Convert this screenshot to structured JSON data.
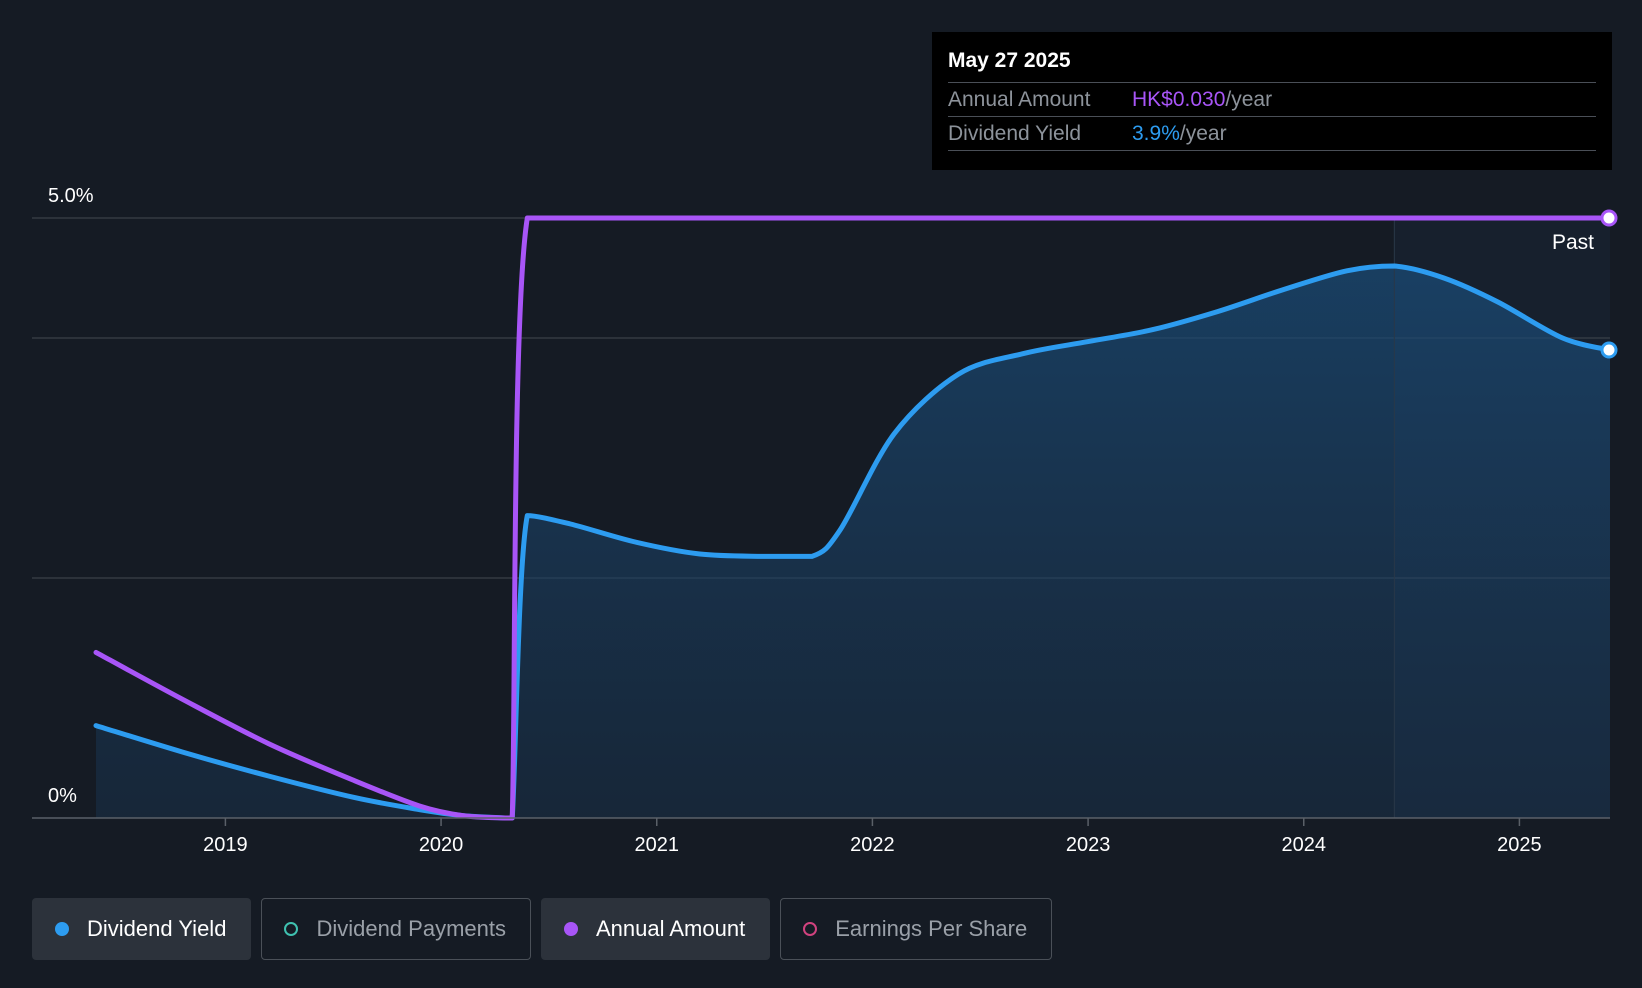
{
  "tooltip": {
    "date": "May 27 2025",
    "rows": [
      {
        "label": "Annual Amount",
        "value": "HK$0.030",
        "unit": "/year",
        "color": "#a855f7"
      },
      {
        "label": "Dividend Yield",
        "value": "3.9%",
        "unit": "/year",
        "color": "#2d9cf0"
      }
    ]
  },
  "legend": [
    {
      "label": "Dividend Yield",
      "color": "#2d9cf0",
      "active": true,
      "filled": true
    },
    {
      "label": "Dividend Payments",
      "color": "#3fc1b0",
      "active": false,
      "filled": false
    },
    {
      "label": "Annual Amount",
      "color": "#a855f7",
      "active": true,
      "filled": true
    },
    {
      "label": "Earnings Per Share",
      "color": "#d0427e",
      "active": false,
      "filled": false
    }
  ],
  "chart_data": {
    "type": "line",
    "y_ticks": [
      "5.0%",
      "0%"
    ],
    "ylim": [
      0,
      5.0
    ],
    "x_ticks": [
      "2019",
      "2020",
      "2021",
      "2022",
      "2023",
      "2024",
      "2025"
    ],
    "xlim": [
      2018.1,
      2025.42
    ],
    "past_label": "Past",
    "past_start": 2024.42,
    "series": [
      {
        "name": "Dividend Yield",
        "color": "#2d9cf0",
        "points": [
          [
            2018.4,
            0.77
          ],
          [
            2018.8,
            0.55
          ],
          [
            2019.2,
            0.35
          ],
          [
            2019.6,
            0.17
          ],
          [
            2019.9,
            0.07
          ],
          [
            2020.1,
            0.02
          ],
          [
            2020.3,
            0.0
          ],
          [
            2020.33,
            0.0
          ],
          [
            2020.4,
            2.52
          ],
          [
            2020.6,
            2.45
          ],
          [
            2020.9,
            2.3
          ],
          [
            2021.2,
            2.2
          ],
          [
            2021.5,
            2.18
          ],
          [
            2021.72,
            2.18
          ],
          [
            2021.85,
            2.4
          ],
          [
            2022.1,
            3.2
          ],
          [
            2022.4,
            3.7
          ],
          [
            2022.7,
            3.87
          ],
          [
            2023.0,
            3.97
          ],
          [
            2023.3,
            4.07
          ],
          [
            2023.6,
            4.22
          ],
          [
            2023.9,
            4.4
          ],
          [
            2024.2,
            4.56
          ],
          [
            2024.42,
            4.6
          ],
          [
            2024.65,
            4.5
          ],
          [
            2024.9,
            4.3
          ],
          [
            2025.2,
            4.0
          ],
          [
            2025.42,
            3.9
          ]
        ]
      },
      {
        "name": "Annual Amount",
        "color": "#a855f7",
        "points": [
          [
            2018.4,
            1.38
          ],
          [
            2018.8,
            0.99
          ],
          [
            2019.2,
            0.62
          ],
          [
            2019.6,
            0.31
          ],
          [
            2019.9,
            0.1
          ],
          [
            2020.1,
            0.02
          ],
          [
            2020.3,
            0.0
          ],
          [
            2020.33,
            0.0
          ],
          [
            2020.4,
            5.0
          ],
          [
            2021.0,
            5.0
          ],
          [
            2022.0,
            5.0
          ],
          [
            2023.0,
            5.0
          ],
          [
            2024.0,
            5.0
          ],
          [
            2025.0,
            5.0
          ],
          [
            2025.42,
            5.0
          ]
        ]
      }
    ],
    "grid": true
  }
}
